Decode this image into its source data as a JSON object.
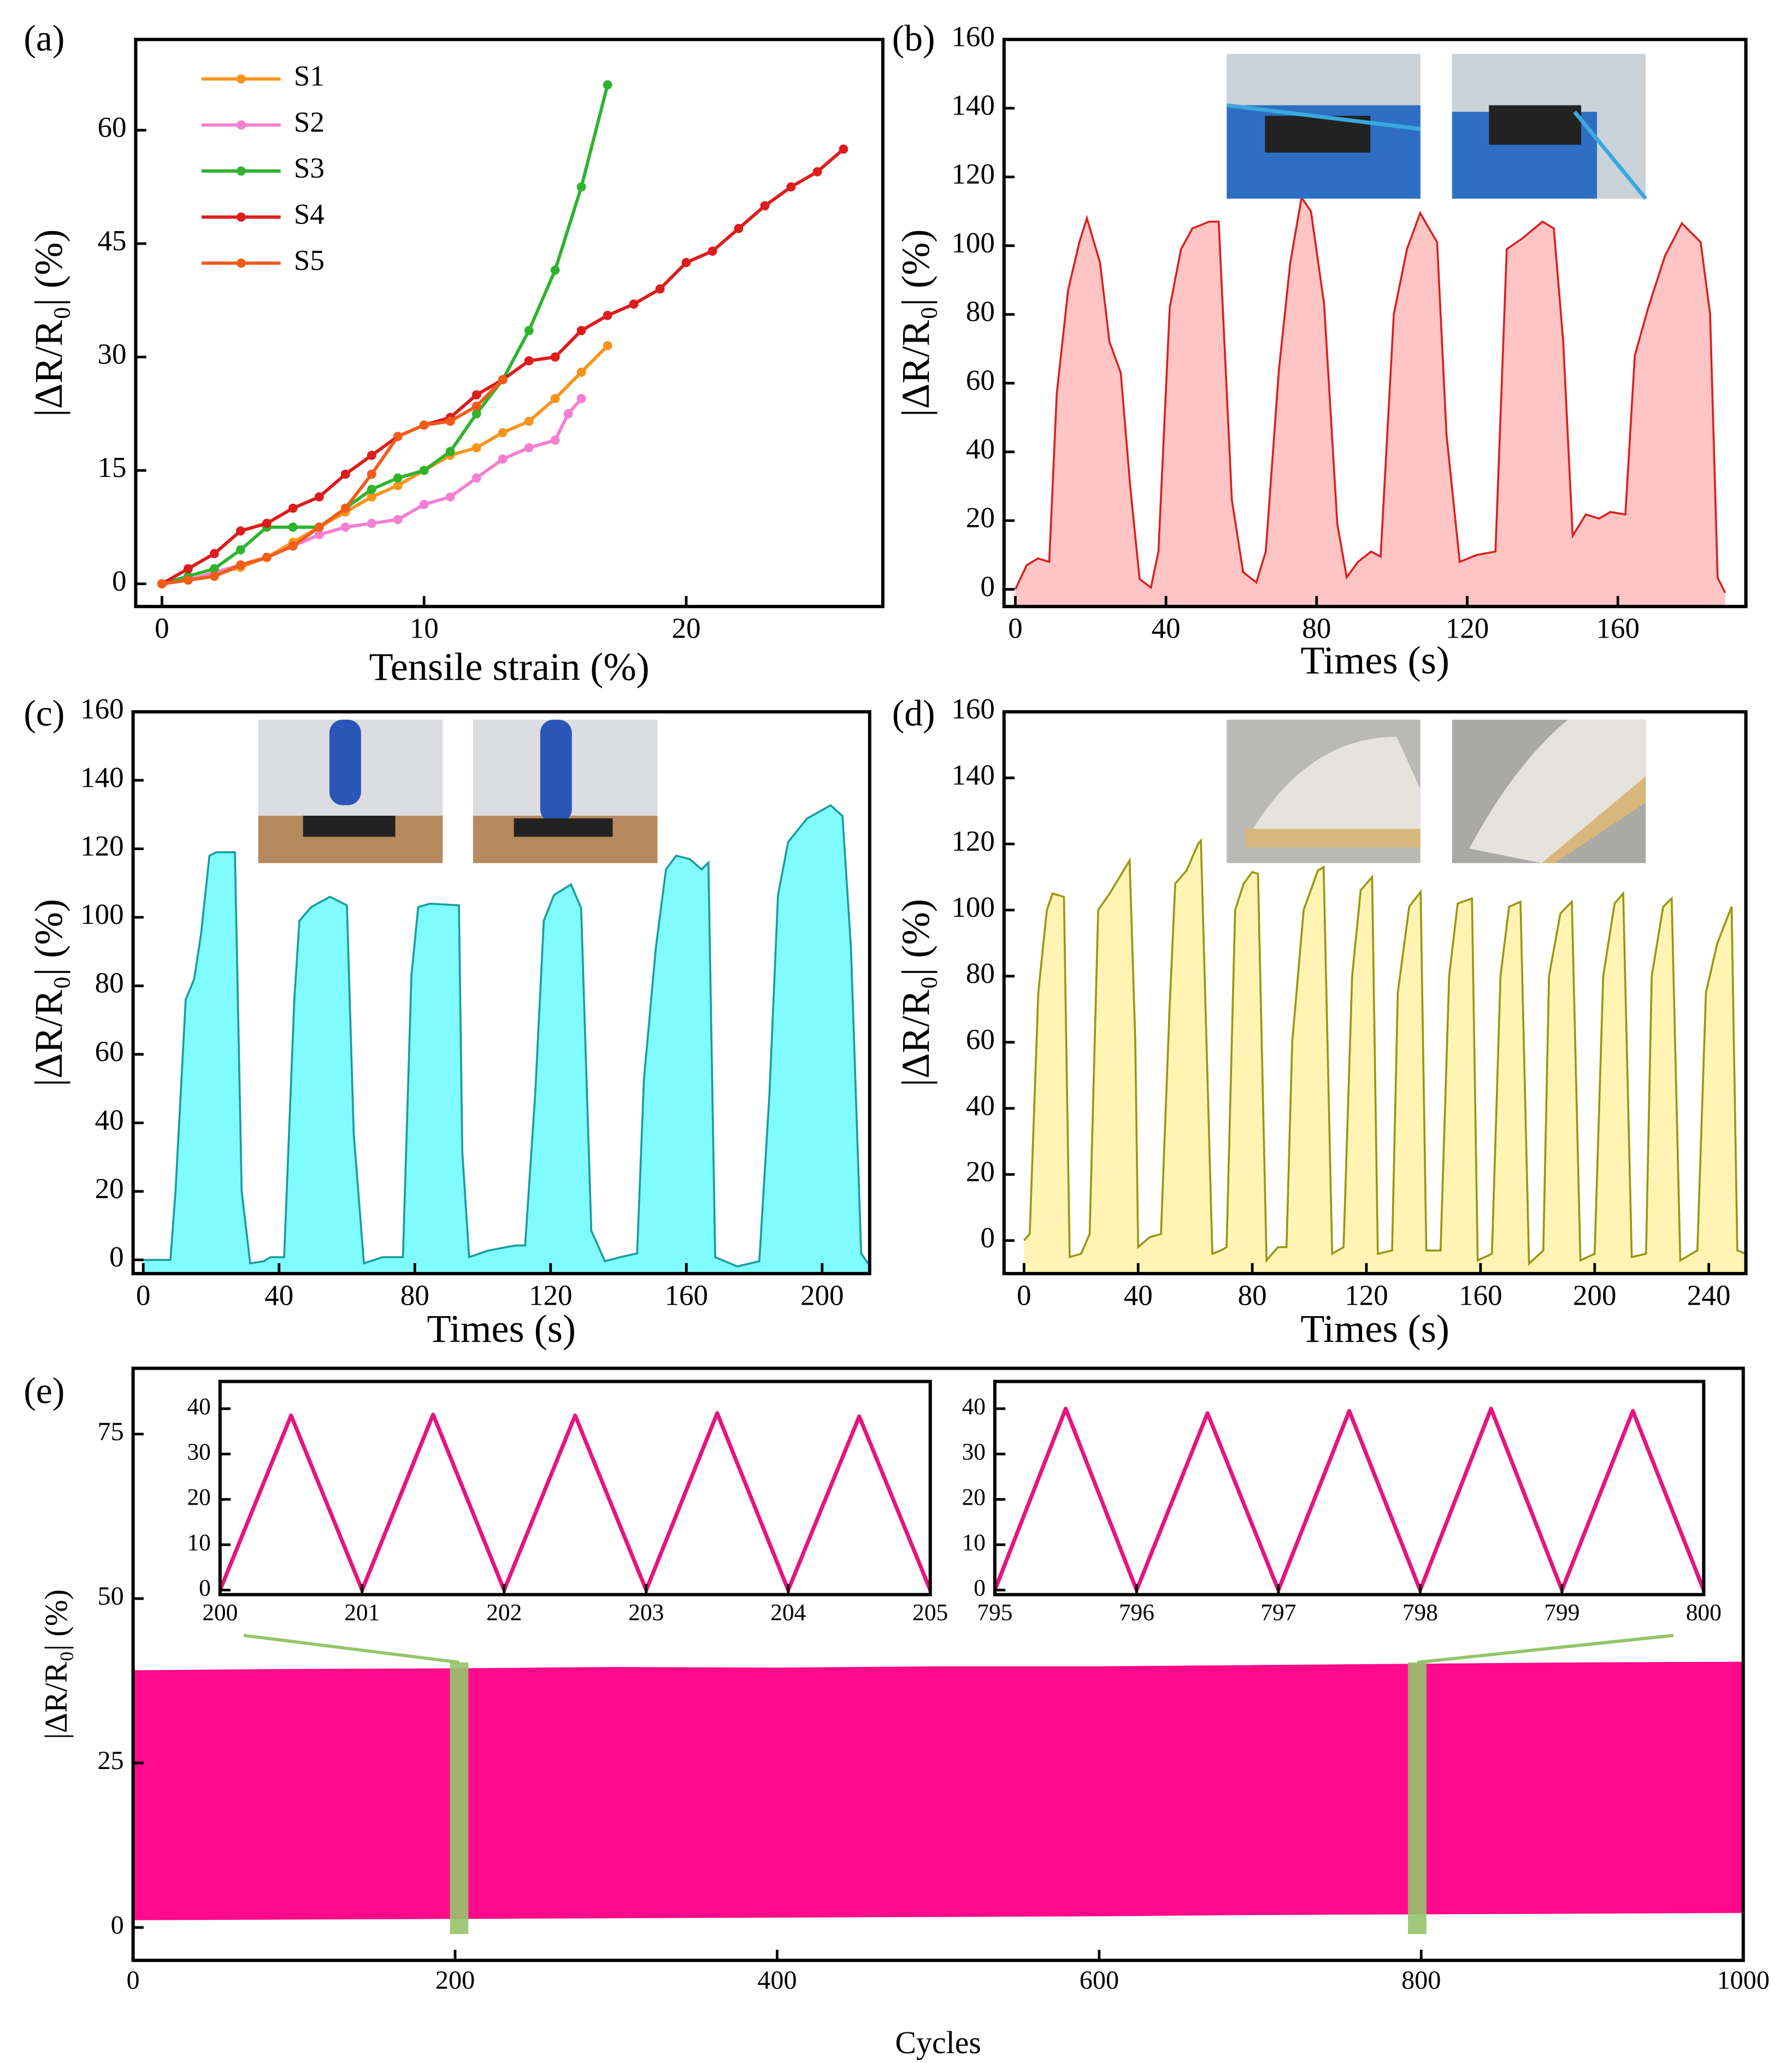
{
  "chart_data": [
    {
      "label": "(a)",
      "type": "line",
      "markers": true,
      "xlabel": "Tensile strain (%)",
      "ylabel": "|ΔR/R₀| (%)",
      "xlim": [
        -1,
        27.5
      ],
      "ylim": [
        -3,
        72
      ],
      "xticks": [
        0,
        10,
        20
      ],
      "yticks": [
        0,
        15,
        30,
        45,
        60
      ],
      "legend": "upper left",
      "series": [
        {
          "name": "S1",
          "color": "#f7941d",
          "x": [
            0,
            1,
            2,
            3,
            4,
            5,
            6,
            7,
            8,
            9,
            10,
            11,
            12,
            13,
            14,
            15,
            16,
            17
          ],
          "values": [
            0,
            0.5,
            1.2,
            2.2,
            3.5,
            5.5,
            7.5,
            9.5,
            11.5,
            13,
            15,
            17,
            18,
            20,
            21.5,
            24.5,
            28,
            31.5
          ]
        },
        {
          "name": "S2",
          "color": "#f47fd0",
          "x": [
            0,
            1,
            2,
            3,
            4,
            5,
            6,
            7,
            8,
            9,
            10,
            11,
            12,
            13,
            14,
            15,
            15.5,
            16
          ],
          "values": [
            0,
            0.5,
            1.5,
            2.5,
            3.5,
            5,
            6.5,
            7.5,
            8,
            8.5,
            10.5,
            11.5,
            14,
            16.5,
            18,
            19,
            22.5,
            24.5
          ]
        },
        {
          "name": "S3",
          "color": "#2fb32f",
          "x": [
            0,
            1,
            2,
            3,
            4,
            5,
            6,
            7,
            8,
            9,
            10,
            11,
            12,
            13,
            14,
            15,
            16,
            17
          ],
          "values": [
            0,
            1,
            2,
            4.5,
            7.5,
            7.5,
            7.5,
            10,
            12.5,
            14,
            15,
            17.5,
            22.5,
            27,
            33.5,
            41.5,
            52.5,
            66
          ]
        },
        {
          "name": "S4",
          "color": "#dd1c1c",
          "x": [
            0,
            1,
            2,
            3,
            4,
            5,
            6,
            7,
            8,
            9,
            10,
            11,
            12,
            13,
            14,
            15,
            16,
            17,
            18,
            19,
            20,
            21,
            22,
            23,
            24,
            25,
            26
          ],
          "values": [
            0,
            2,
            4,
            7,
            8,
            10,
            11.5,
            14.5,
            17,
            19.5,
            21,
            22,
            25,
            27,
            29.5,
            30,
            33.5,
            35.5,
            37,
            39,
            42.5,
            44,
            47,
            50,
            52.5,
            54.5,
            57.5
          ]
        },
        {
          "name": "S5",
          "color": "#f25c19",
          "x": [
            0,
            1,
            2,
            3,
            4,
            5,
            6,
            7,
            8,
            9,
            10,
            11,
            12,
            13
          ],
          "values": [
            0,
            0.5,
            1,
            2.5,
            3.5,
            5,
            7.5,
            10,
            14.5,
            19.5,
            21,
            21.5,
            23.5,
            27
          ]
        }
      ]
    },
    {
      "label": "(b)",
      "type": "area",
      "xlabel": "Times (s)",
      "ylabel": "|ΔR/R₀| (%)",
      "xlim": [
        -3,
        194
      ],
      "ylim": [
        -5,
        160
      ],
      "xticks": [
        0,
        40,
        80,
        120,
        160
      ],
      "yticks": [
        0,
        20,
        40,
        60,
        80,
        100,
        120,
        140,
        160
      ],
      "series": [
        {
          "color": "#d92020",
          "fill": "#ffc4c4",
          "x": [
            0,
            3,
            6,
            9,
            11,
            14,
            17,
            19,
            22.5,
            25,
            28,
            30.5,
            33,
            36,
            38,
            41,
            44,
            47,
            51.5,
            54,
            57.5,
            60.5,
            64,
            66.5,
            70,
            73,
            76,
            78.5,
            82,
            85.5,
            88,
            91,
            94.5,
            97,
            100.5,
            104,
            107.5,
            112,
            114.5,
            118,
            122.5,
            127.5,
            130.5,
            134.5,
            140,
            143,
            145.5,
            148,
            151.5,
            155,
            158,
            162,
            164.5,
            168,
            172.5,
            177,
            182,
            184.5,
            186.5,
            188.5
          ],
          "values": [
            0,
            7,
            9,
            8,
            57,
            87,
            101,
            108,
            95,
            72,
            63,
            30,
            3,
            0.5,
            11,
            82,
            99,
            105,
            107,
            107,
            26,
            5,
            2,
            11,
            64,
            95,
            114,
            110,
            83,
            19,
            3.5,
            8,
            11,
            9.5,
            80,
            99,
            109.5,
            101,
            45,
            8,
            10,
            11,
            99,
            102,
            107,
            105,
            72,
            15.6,
            21.8,
            20.6,
            22.5,
            21.8,
            68,
            81.7,
            97,
            106.5,
            101,
            80,
            3.4,
            -1
          ]
        }
      ]
    },
    {
      "label": "(c)",
      "type": "area",
      "xlabel": "Times (s)",
      "ylabel": "|ΔR/R₀| (%)",
      "xlim": [
        -3,
        214
      ],
      "ylim": [
        -4,
        160
      ],
      "xticks": [
        0,
        40,
        80,
        120,
        160,
        200
      ],
      "yticks": [
        0,
        20,
        40,
        60,
        80,
        100,
        120,
        140,
        160
      ],
      "series": [
        {
          "color": "#1a9c9c",
          "fill": "#80fbff",
          "x": [
            0,
            8,
            9.5,
            12.5,
            15,
            17,
            19.5,
            21.5,
            27,
            29,
            31.5,
            35.5,
            37.5,
            41.5,
            44.5,
            46,
            49.5,
            55,
            60,
            62,
            65,
            70.5,
            76.5,
            79,
            81,
            84.5,
            93,
            94,
            96,
            101.5,
            109.5,
            112.5,
            115.5,
            118,
            121,
            126,
            129,
            132,
            136,
            140.5,
            145.5,
            147.5,
            151,
            154,
            157,
            161,
            164.5,
            166.5,
            168.5,
            175,
            181.5,
            184.5,
            187,
            190,
            195.5,
            202.5,
            206,
            208.5,
            211.5,
            213.5
          ],
          "values": [
            0,
            0,
            20,
            76,
            82,
            95,
            118,
            119,
            119,
            20,
            -1,
            -0.4,
            0.8,
            0.8,
            76,
            99,
            103,
            106,
            103.5,
            37,
            -1,
            0.8,
            0.8,
            83,
            103,
            104,
            103.5,
            31.5,
            0.8,
            2.7,
            4.2,
            4.2,
            49,
            99,
            106.5,
            109.6,
            102.7,
            8.5,
            -0.4,
            0.8,
            1.9,
            52.7,
            91,
            114,
            118,
            117,
            114,
            116,
            0.8,
            -1.9,
            -0.4,
            48.8,
            106.5,
            122,
            128.8,
            132.7,
            129.6,
            91,
            1.9,
            -1
          ]
        }
      ]
    },
    {
      "label": "(d)",
      "type": "area",
      "xlabel": "Times (s)",
      "ylabel": "|ΔR/R₀| (%)",
      "xlim": [
        -7,
        253
      ],
      "ylim": [
        -10,
        160
      ],
      "xticks": [
        0,
        40,
        80,
        120,
        160,
        200,
        240
      ],
      "yticks": [
        0,
        20,
        40,
        60,
        80,
        100,
        120,
        140,
        160
      ],
      "series": [
        {
          "color": "#9a9612",
          "fill": "#fff4b4",
          "x": [
            0,
            2,
            5,
            8,
            10,
            14,
            16,
            20,
            23,
            26,
            30,
            37,
            39,
            40,
            44,
            48,
            51,
            53,
            57,
            61,
            62,
            66,
            69,
            71,
            74,
            77,
            80,
            82,
            85,
            89,
            92,
            94,
            98,
            103,
            105,
            108,
            112,
            115,
            118,
            122,
            124,
            129,
            131,
            135,
            139,
            141,
            146,
            149,
            152,
            157,
            159,
            164,
            167,
            170,
            174,
            177,
            182,
            184,
            188,
            192,
            195,
            200,
            203,
            207,
            210,
            213,
            218,
            220,
            224,
            227,
            230,
            236,
            239,
            243,
            248,
            250,
            253
          ],
          "values": [
            0,
            2,
            75,
            100,
            105,
            104,
            -5,
            -4,
            2,
            100,
            105,
            115,
            60,
            -2,
            1,
            2,
            70,
            108,
            112,
            120,
            121,
            -4,
            -3,
            -2,
            100,
            108,
            111.5,
            111,
            -6,
            -2,
            -2,
            60,
            100,
            112,
            113,
            -4,
            -2,
            80,
            106,
            110,
            -4,
            -3,
            75,
            101,
            105.5,
            -3,
            -3,
            80,
            102,
            103.5,
            -6,
            -4,
            80,
            101,
            102.5,
            -7,
            -3,
            80,
            99,
            102.5,
            -6,
            -4,
            80,
            102,
            105,
            -5,
            -4,
            80,
            101,
            103.5,
            -6,
            -3,
            75,
            90,
            101,
            -3,
            -4
          ]
        }
      ]
    },
    {
      "label": "(e)",
      "type": "band",
      "xlabel": "Cycles",
      "ylabel": "|ΔR/R₀| (%)",
      "xlim": [
        0,
        1000
      ],
      "ylim": [
        -5,
        85
      ],
      "xticks": [
        0,
        200,
        400,
        600,
        800,
        1000
      ],
      "yticks": [
        0,
        25,
        50,
        75
      ],
      "color": "#ff0a8a",
      "highlight_color": "#96c46a",
      "x": [
        0,
        100,
        200,
        300,
        400,
        500,
        600,
        700,
        800,
        900,
        1000
      ],
      "upper": [
        39,
        39.2,
        39.3,
        39.5,
        39.4,
        39.6,
        39.6,
        39.8,
        40,
        40.2,
        40.3
      ],
      "lower": [
        1.2,
        1.3,
        1.4,
        1.5,
        1.6,
        1.7,
        1.8,
        2,
        2.1,
        2.2,
        2.3
      ]
    },
    {
      "type": "line",
      "xlim": [
        200,
        205
      ],
      "ylim": [
        -1,
        46
      ],
      "xticks": [
        200,
        201,
        202,
        203,
        204,
        205
      ],
      "yticks": [
        0,
        10,
        20,
        30,
        40
      ],
      "series": [
        {
          "color": "#e6147f",
          "x": [
            200,
            200.5,
            201,
            201.5,
            202,
            202.5,
            203,
            203.5,
            204,
            204.5,
            205
          ],
          "values": [
            0,
            38.5,
            0,
            38.7,
            0,
            38.5,
            0,
            39,
            0,
            38.3,
            0
          ]
        }
      ]
    },
    {
      "type": "line",
      "xlim": [
        795,
        800
      ],
      "ylim": [
        -1,
        46
      ],
      "xticks": [
        795,
        796,
        797,
        798,
        799,
        800
      ],
      "yticks": [
        0,
        10,
        20,
        30,
        40
      ],
      "series": [
        {
          "color": "#e6147f",
          "x": [
            795,
            795.5,
            796,
            796.5,
            797,
            797.5,
            798,
            798.5,
            799,
            799.5,
            800
          ],
          "values": [
            0,
            40,
            0,
            39,
            0,
            39.5,
            0,
            40,
            0,
            39.5,
            0
          ]
        }
      ]
    }
  ]
}
